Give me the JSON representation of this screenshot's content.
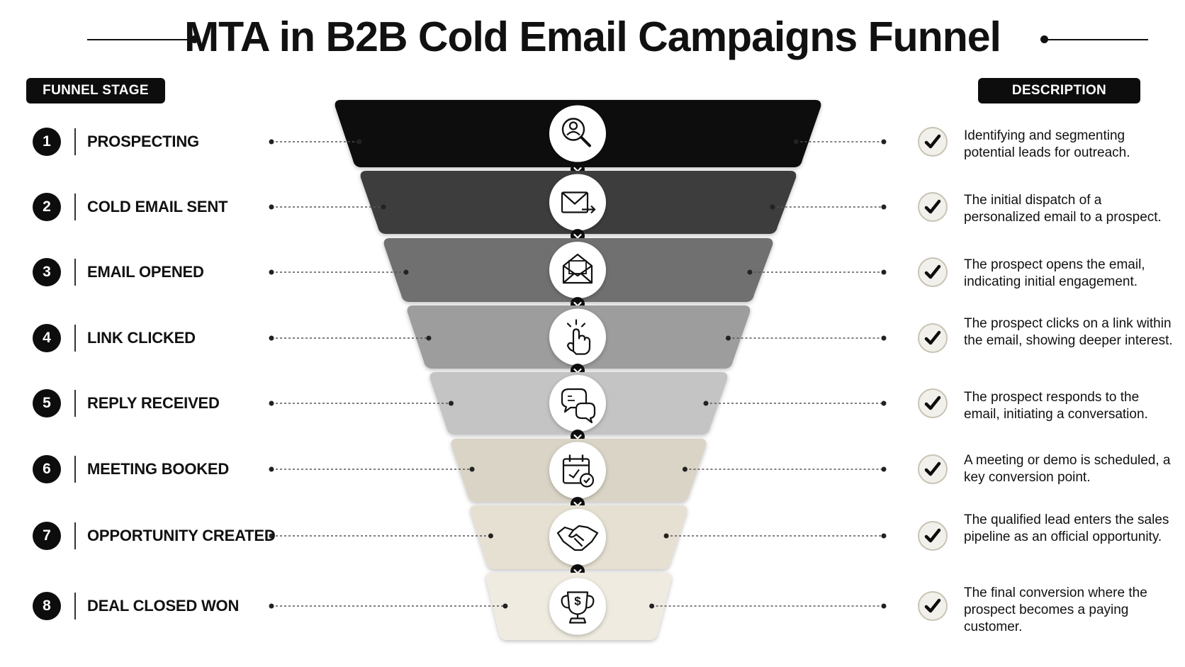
{
  "title": "MTA in B2B Cold Email Campaigns Funnel",
  "headers": {
    "left": "FUNNEL STAGE",
    "right": "DESCRIPTION"
  },
  "stages": [
    {
      "number": "1",
      "label": "PROSPECTING",
      "description": "Identifying and segmenting potential leads for outreach.",
      "icon": "search-user-icon",
      "color": "#0b0b0b"
    },
    {
      "number": "2",
      "label": "COLD EMAIL SENT",
      "description": "The initial dispatch of a personalized email to a prospect.",
      "icon": "email-send-icon",
      "color": "#3d3d3d"
    },
    {
      "number": "3",
      "label": "EMAIL OPENED",
      "description": "The prospect opens the email, indicating initial engagement.",
      "icon": "open-envelope-icon",
      "color": "#6f6f6f"
    },
    {
      "number": "4",
      "label": "LINK CLICKED",
      "description": "The prospect clicks on a link within the email, showing deeper interest.",
      "icon": "hand-click-icon",
      "color": "#9d9d9d"
    },
    {
      "number": "5",
      "label": "REPLY RECEIVED",
      "description": "The prospect responds to the email, initiating a conversation.",
      "icon": "chat-bubbles-icon",
      "color": "#c4c4c4"
    },
    {
      "number": "6",
      "label": "MEETING BOOKED",
      "description": "A meeting or demo is scheduled, a key conversion point.",
      "icon": "calendar-check-icon",
      "color": "#d9d4c5"
    },
    {
      "number": "7",
      "label": "OPPORTUNITY CREATED",
      "description": "The qualified lead enters the sales pipeline as an official opportunity.",
      "icon": "handshake-icon",
      "color": "#e5e0d1"
    },
    {
      "number": "8",
      "label": "DEAL CLOSED WON",
      "description": "The final conversion where the prospect becomes a paying customer.",
      "icon": "trophy-dollar-icon",
      "color": "#efebe0"
    }
  ]
}
